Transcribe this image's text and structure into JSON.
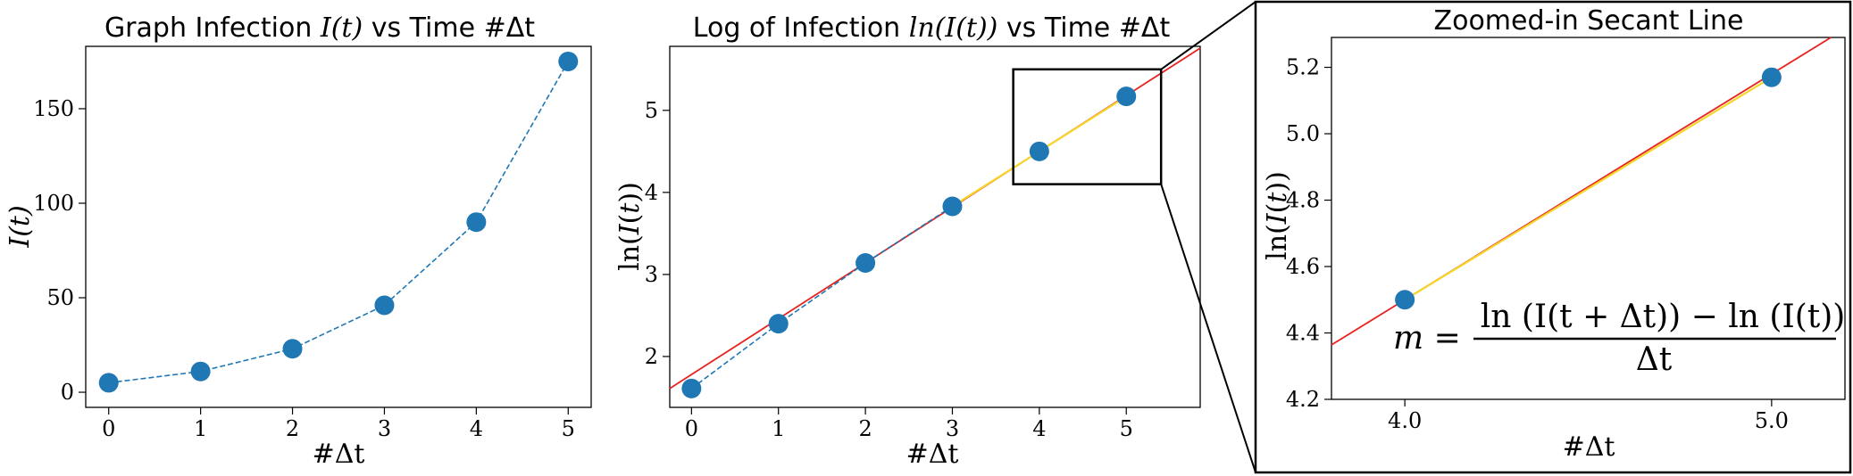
{
  "charts": [
    {
      "title_text": "Graph Infection ",
      "title_math": "I(t)",
      "title_tail": " vs Time #Δt",
      "xlabel": "#Δt",
      "ylabel": "I(t)"
    },
    {
      "title_text": "Log of Infection ",
      "title_math": "ln(I(t))",
      "title_tail": " vs Time #Δt",
      "xlabel": "#Δt",
      "ylabel": "ln(I(t))"
    },
    {
      "title_text": "Zoomed-in Secant Line",
      "xlabel": "#Δt",
      "ylabel": "ln(I(t))",
      "formula_lhs": "m =",
      "formula_num": "ln (I(t + Δt)) − ln (I(t))",
      "formula_den": "Δt"
    }
  ],
  "colors": {
    "points": "#1f77b4",
    "fit_line": "#e8221f",
    "secant": "#f5d52a",
    "frame": "#000000"
  },
  "chart_data": [
    {
      "type": "line",
      "title": "Graph Infection I(t) vs Time #Δt",
      "xlabel": "#Δt",
      "ylabel": "I(t)",
      "x": [
        0,
        1,
        2,
        3,
        4,
        5
      ],
      "series": [
        {
          "style": "dashed line with markers",
          "values": [
            5,
            11,
            23,
            46,
            90,
            175
          ]
        }
      ],
      "xlim": [
        -0.25,
        5.25
      ],
      "ylim": [
        -8,
        183
      ],
      "xticks": [
        0,
        1,
        2,
        3,
        4,
        5
      ],
      "yticks": [
        0,
        50,
        100,
        150
      ],
      "grid": false
    },
    {
      "type": "line",
      "title": "Log of Infection ln(I(t)) vs Time #Δt",
      "xlabel": "#Δt",
      "ylabel": "ln(I(t))",
      "x": [
        0,
        1,
        2,
        3,
        4,
        5
      ],
      "series": [
        {
          "style": "dashed line with markers (indices 0–3); solid secant (indices 3–5)",
          "values": [
            1.61,
            2.4,
            3.14,
            3.83,
            4.5,
            5.17
          ]
        }
      ],
      "fit_line": {
        "slope": 0.68,
        "intercept": 1.78
      },
      "zoom_box": {
        "x": [
          3.7,
          5.4
        ],
        "y": [
          4.1,
          5.5
        ]
      },
      "xlim": [
        -0.25,
        5.85
      ],
      "ylim": [
        1.38,
        5.78
      ],
      "xticks": [
        0,
        1,
        2,
        3,
        4,
        5
      ],
      "yticks": [
        2,
        3,
        4,
        5
      ],
      "grid": false
    },
    {
      "type": "line",
      "title": "Zoomed-in Secant Line",
      "xlabel": "#Δt",
      "ylabel": "ln(I(t))",
      "x": [
        4,
        5
      ],
      "series": [
        {
          "style": "secant with markers",
          "values": [
            4.5,
            5.17
          ]
        }
      ],
      "fit_line": {
        "slope": 0.68,
        "intercept": 1.78
      },
      "xlim": [
        3.8,
        5.2
      ],
      "ylim": [
        4.2,
        5.29
      ],
      "xticks": [
        4,
        5
      ],
      "yticks": [
        4.2,
        4.4,
        4.6,
        4.8,
        5.0,
        5.2
      ],
      "grid": false
    }
  ]
}
